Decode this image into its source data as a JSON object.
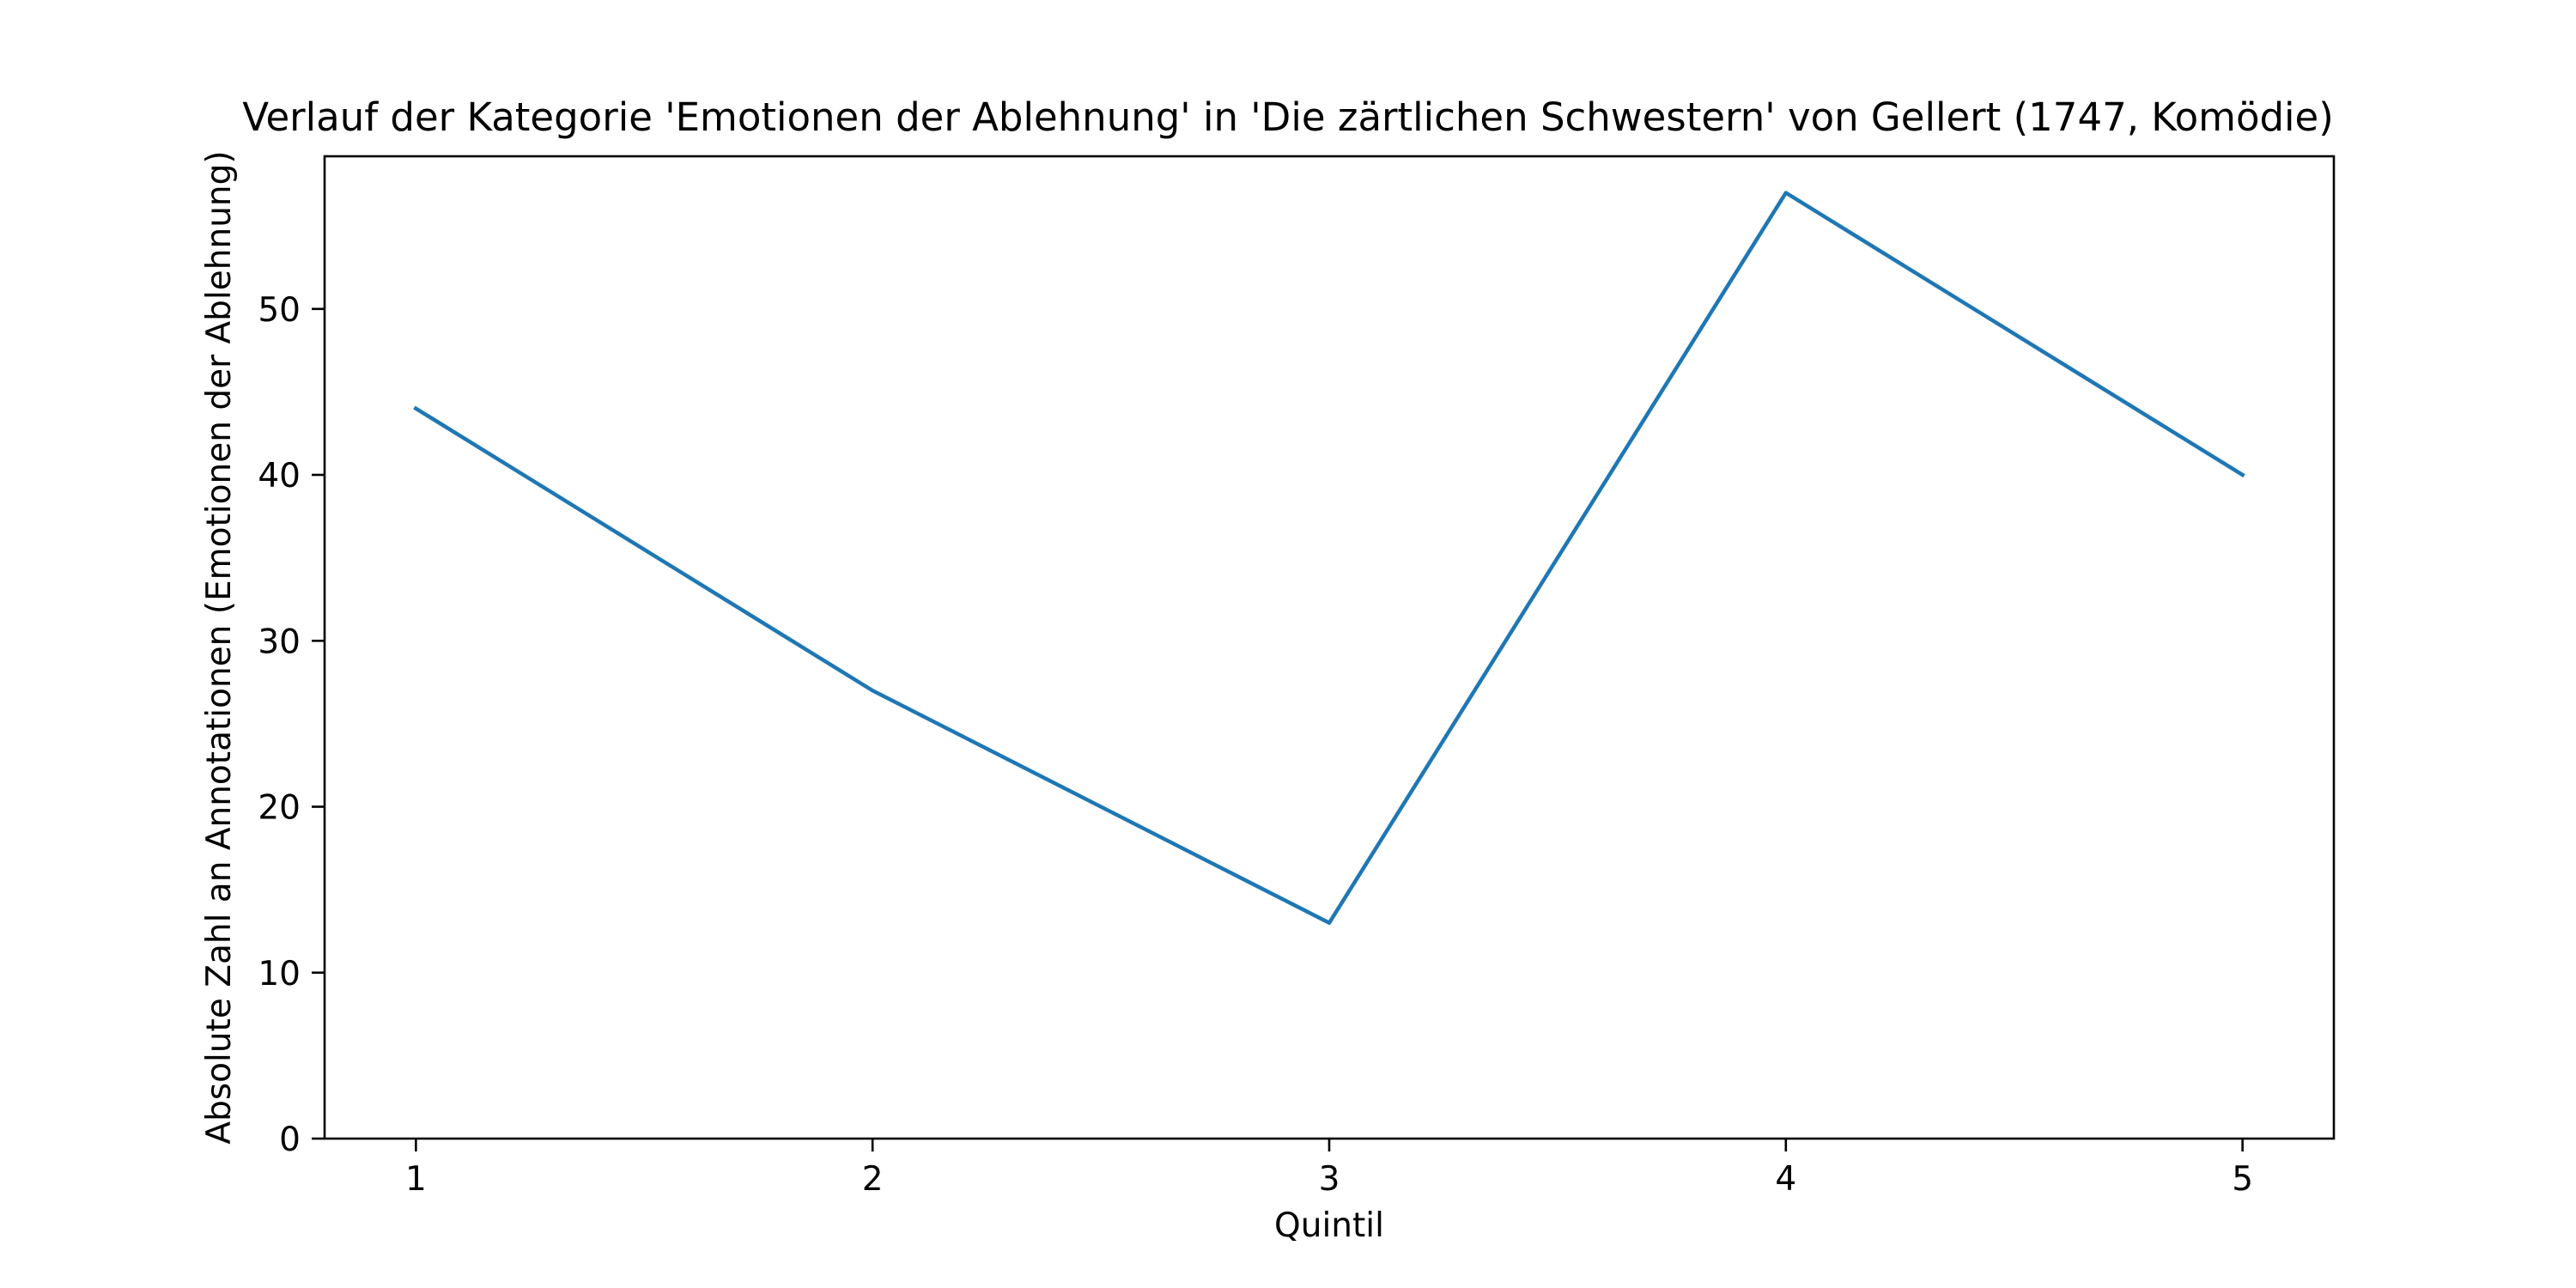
{
  "chart_data": {
    "type": "line",
    "title": "Verlauf der Kategorie 'Emotionen der Ablehnung' in 'Die zärtlichen Schwestern' von Gellert (1747, Komödie)",
    "xlabel": "Quintil",
    "ylabel": "Absolute Zahl an Annotationen (Emotionen der Ablehnung)",
    "x": [
      1,
      2,
      3,
      4,
      5
    ],
    "x_ticks": [
      "1",
      "2",
      "3",
      "4",
      "5"
    ],
    "y_ticks": [
      "0",
      "10",
      "20",
      "30",
      "40",
      "50"
    ],
    "xlim": [
      0.8,
      5.2
    ],
    "ylim": [
      0,
      59.2
    ],
    "grid": false,
    "series": [
      {
        "values": [
          44,
          27,
          13,
          57,
          40
        ],
        "color": "#1f77b4"
      }
    ]
  }
}
